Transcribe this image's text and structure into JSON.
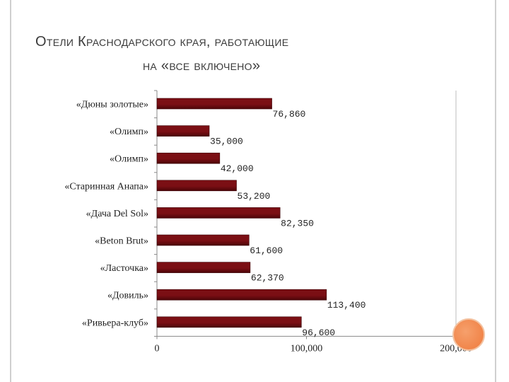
{
  "title": {
    "line1": "Отели Краснодарского края, работающие",
    "line2": "на «все включено»"
  },
  "colors": {
    "bar": "#7b0f14",
    "bar_dark": "#4c0508",
    "grid": "#bdbdbd",
    "accent_dot": "#ef7a3c"
  },
  "chart_data": {
    "type": "bar",
    "orientation": "horizontal",
    "categories": [
      "«Дюны золотые»",
      "«Олимп»",
      "«Олимп»",
      "«Старинная Анапа»",
      "«Дача Del Sol»",
      "«Beton Brut»",
      "«Ласточка»",
      "«Довиль»",
      "«Ривьера-клуб»"
    ],
    "values": [
      76860,
      35000,
      42000,
      53200,
      82350,
      61600,
      62370,
      113400,
      96600
    ],
    "value_labels": [
      "76,860",
      "35,000",
      "42,000",
      "53,200",
      "82,350",
      "61,600",
      "62,370",
      "113,400",
      "96,600"
    ],
    "xlim": [
      0,
      200000
    ],
    "x_ticks": [
      0,
      100000,
      200000
    ],
    "x_tick_labels": [
      "0",
      "100,000",
      "200,000"
    ],
    "grid": false,
    "legend": "none"
  }
}
